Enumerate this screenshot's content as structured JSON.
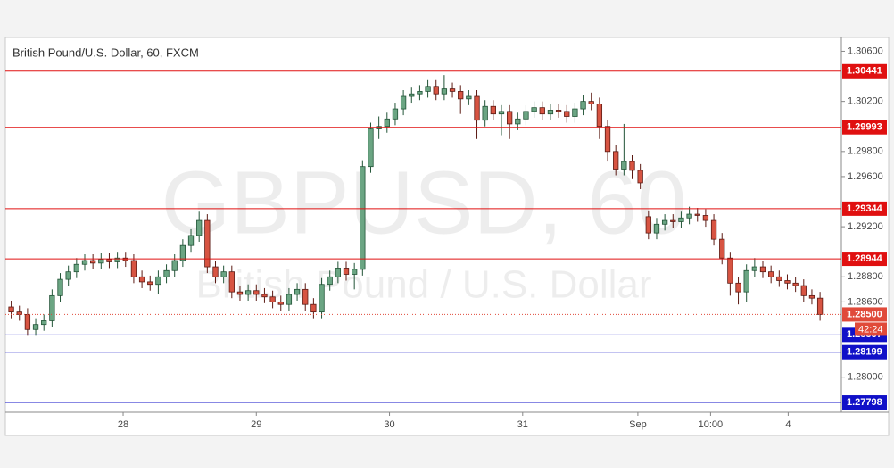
{
  "chart_data": {
    "type": "candlestick",
    "title": "British Pound/U.S. Dollar, 60, FXCM",
    "watermark": "GBPUSD, 60",
    "watermark_subtitle": "British Pound / U.S. Dollar",
    "up_color": "#6ba583",
    "up_border": "#225437",
    "down_color": "#d75442",
    "down_border": "#5b1a13",
    "open": [
      1.2856,
      1.2852,
      1.285,
      1.2838,
      1.2842,
      1.2845,
      1.2865,
      1.2878,
      1.2884,
      1.289,
      1.2893,
      1.2891,
      1.2894,
      1.2892,
      1.2895,
      1.2893,
      1.288,
      1.2876,
      1.2874,
      1.288,
      1.2885,
      1.2893,
      1.2905,
      1.2913,
      1.2925,
      1.2888,
      1.288,
      1.2884,
      1.2868,
      1.2866,
      1.2869,
      1.2866,
      1.2864,
      1.286,
      1.2858,
      1.2866,
      1.287,
      1.2858,
      1.2852,
      1.2874,
      1.288,
      1.2887,
      1.2882,
      1.2886,
      1.2968,
      1.2998,
      1.3,
      1.3006,
      1.3014,
      1.3024,
      1.3026,
      1.3028,
      1.3032,
      1.3026,
      1.303,
      1.3028,
      1.3022,
      1.3024,
      1.3005,
      1.3016,
      1.301,
      1.3012,
      1.3002,
      1.3006,
      1.3012,
      1.3015,
      1.301,
      1.3013,
      1.3012,
      1.3008,
      1.3014,
      1.302,
      1.3018,
      1.3,
      1.298,
      1.2966,
      1.2972,
      1.2965,
      1.2928,
      1.2915,
      1.2922,
      1.2925,
      1.2924,
      1.2927,
      1.293,
      1.2929,
      1.2925,
      1.291,
      1.2895,
      1.2875,
      1.2868,
      1.2885,
      1.2888,
      1.2884,
      1.288,
      1.2877,
      1.2875,
      1.2873,
      1.2865,
      1.2863
    ],
    "high": [
      1.2861,
      1.2857,
      1.2855,
      1.2847,
      1.285,
      1.287,
      1.2883,
      1.2889,
      1.2895,
      1.2898,
      1.2898,
      1.2899,
      1.2899,
      1.29,
      1.29,
      1.2898,
      1.2885,
      1.2881,
      1.2885,
      1.289,
      1.2898,
      1.291,
      1.2918,
      1.2932,
      1.293,
      1.2893,
      1.2889,
      1.2889,
      1.2873,
      1.2874,
      1.2874,
      1.2871,
      1.2869,
      1.2865,
      1.2871,
      1.2875,
      1.2875,
      1.2863,
      1.2879,
      1.2885,
      1.2892,
      1.2892,
      1.2891,
      1.2973,
      1.3003,
      1.3008,
      1.3011,
      1.3019,
      1.3029,
      1.3031,
      1.3033,
      1.3037,
      1.3037,
      1.3041,
      1.3035,
      1.3033,
      1.3029,
      1.3029,
      1.3021,
      1.3021,
      1.3017,
      1.3017,
      1.3011,
      1.3017,
      1.302,
      1.302,
      1.3018,
      1.3018,
      1.3017,
      1.3019,
      1.3025,
      1.3027,
      1.3023,
      1.3005,
      1.2985,
      1.3002,
      1.2977,
      1.297,
      1.2933,
      1.2927,
      1.293,
      1.293,
      1.2932,
      1.2936,
      1.2935,
      1.2934,
      1.293,
      1.2915,
      1.29,
      1.288,
      1.289,
      1.2895,
      1.2893,
      1.2889,
      1.2885,
      1.2882,
      1.288,
      1.2878,
      1.287,
      1.2868
    ],
    "low": [
      1.2847,
      1.2845,
      1.2833,
      1.2833,
      1.2837,
      1.284,
      1.286,
      1.2873,
      1.2879,
      1.2885,
      1.2886,
      1.2886,
      1.2887,
      1.2887,
      1.2888,
      1.2875,
      1.2871,
      1.2869,
      1.2866,
      1.2875,
      1.288,
      1.2888,
      1.29,
      1.2908,
      1.2883,
      1.2875,
      1.2875,
      1.2863,
      1.2861,
      1.2861,
      1.2861,
      1.2859,
      1.2855,
      1.2853,
      1.2853,
      1.2861,
      1.2853,
      1.2847,
      1.2847,
      1.2869,
      1.2875,
      1.2877,
      1.287,
      1.2881,
      1.2963,
      1.299,
      1.2995,
      1.3001,
      1.3009,
      1.3019,
      1.3021,
      1.3023,
      1.3021,
      1.3021,
      1.3023,
      1.301,
      1.3017,
      1.299,
      1.3,
      1.3005,
      1.2993,
      1.299,
      1.2997,
      1.3001,
      1.3007,
      1.3005,
      1.3005,
      1.3007,
      1.3003,
      1.3003,
      1.3009,
      1.3013,
      1.299,
      1.2972,
      1.2961,
      1.2961,
      1.2958,
      1.295,
      1.291,
      1.291,
      1.2917,
      1.2919,
      1.2919,
      1.2922,
      1.2924,
      1.292,
      1.2905,
      1.289,
      1.2865,
      1.2858,
      1.286,
      1.288,
      1.2879,
      1.2875,
      1.2872,
      1.287,
      1.2868,
      1.286,
      1.2858,
      1.2845
    ],
    "close": [
      1.2852,
      1.285,
      1.2838,
      1.2842,
      1.2845,
      1.2865,
      1.2878,
      1.2884,
      1.289,
      1.2893,
      1.2891,
      1.2894,
      1.2892,
      1.2895,
      1.2893,
      1.288,
      1.2876,
      1.2874,
      1.288,
      1.2885,
      1.2893,
      1.2905,
      1.2913,
      1.2925,
      1.2888,
      1.288,
      1.2884,
      1.2868,
      1.2866,
      1.2869,
      1.2866,
      1.2864,
      1.286,
      1.2858,
      1.2866,
      1.287,
      1.2858,
      1.2852,
      1.2874,
      1.288,
      1.2887,
      1.2882,
      1.2886,
      1.2968,
      1.2998,
      1.3,
      1.3006,
      1.3014,
      1.3024,
      1.3026,
      1.3028,
      1.3032,
      1.3026,
      1.303,
      1.3028,
      1.3022,
      1.3024,
      1.3005,
      1.3016,
      1.301,
      1.3012,
      1.3002,
      1.3006,
      1.3012,
      1.3015,
      1.301,
      1.3013,
      1.3012,
      1.3008,
      1.3014,
      1.302,
      1.3018,
      1.3,
      1.298,
      1.2966,
      1.2972,
      1.2965,
      1.2955,
      1.2915,
      1.2922,
      1.2925,
      1.2924,
      1.2927,
      1.293,
      1.2929,
      1.2925,
      1.291,
      1.2895,
      1.2875,
      1.2868,
      1.2885,
      1.2888,
      1.2884,
      1.288,
      1.2877,
      1.2875,
      1.2873,
      1.2865,
      1.2863,
      1.285
    ],
    "xlim": [
      -0.5,
      101.5
    ],
    "xticks": [
      {
        "value": 13.7,
        "label": "28"
      },
      {
        "value": 30,
        "label": "29"
      },
      {
        "value": 46.3,
        "label": "30"
      },
      {
        "value": 62.6,
        "label": "31"
      },
      {
        "value": 76.7,
        "label": "Sep"
      },
      {
        "value": 85.6,
        "label": "10:00"
      },
      {
        "value": 95.1,
        "label": "4"
      }
    ],
    "ylim": [
      1.2772,
      1.3071
    ],
    "yticks": [
      {
        "value": 1.306,
        "label": "1.30600"
      },
      {
        "value": 1.302,
        "label": "1.30200"
      },
      {
        "value": 1.298,
        "label": "1.29800"
      },
      {
        "value": 1.296,
        "label": "1.29600"
      },
      {
        "value": 1.292,
        "label": "1.29200"
      },
      {
        "value": 1.288,
        "label": "1.28800"
      },
      {
        "value": 1.286,
        "label": "1.28600"
      },
      {
        "value": 1.28,
        "label": "1.28000"
      }
    ],
    "levels": [
      {
        "value": 1.30441,
        "color": "#e01010"
      },
      {
        "value": 1.29993,
        "color": "#e01010"
      },
      {
        "value": 1.29344,
        "color": "#e01010"
      },
      {
        "value": 1.28944,
        "color": "#e01010"
      },
      {
        "value": 1.28337,
        "color": "#1010c8"
      },
      {
        "value": 1.28199,
        "color": "#1010c8"
      },
      {
        "value": 1.27798,
        "color": "#1010c8"
      }
    ],
    "last_price": {
      "value": 1.285,
      "label": "1.28500",
      "color": "#e04a3a"
    },
    "countdown": "42:24"
  }
}
